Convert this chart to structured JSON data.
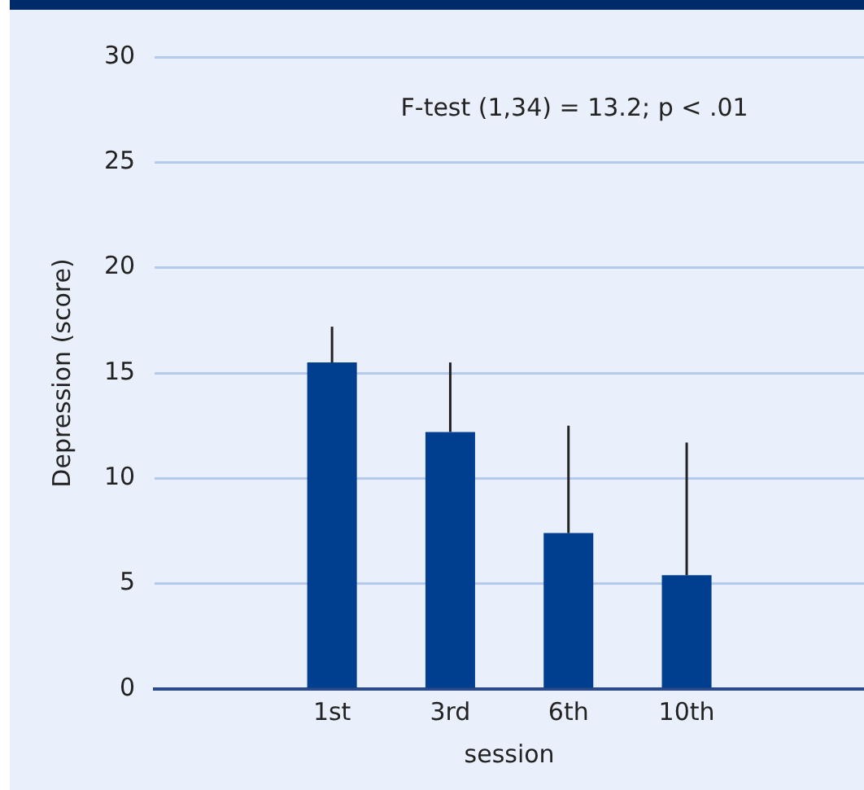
{
  "chart_data": {
    "type": "bar",
    "categories": [
      null,
      "1st",
      "3rd",
      "6th",
      "10th",
      null
    ],
    "values": [
      null,
      15.5,
      12.2,
      7.4,
      5.4,
      null
    ],
    "errors": [
      null,
      [
        15.5,
        17.2
      ],
      [
        12.2,
        15.5
      ],
      [
        7.4,
        12.5
      ],
      [
        5.4,
        11.7
      ],
      null
    ],
    "color": "#003f8f",
    "xlabel": "session",
    "ylabel": "Depression (score)",
    "ylim": [
      0,
      30
    ],
    "yticks": [
      0,
      5,
      10,
      15,
      20,
      25,
      30
    ],
    "grid": "y",
    "legend": false,
    "annotations": [
      "F-test (1,34) = 13.2; p < .01"
    ]
  }
}
